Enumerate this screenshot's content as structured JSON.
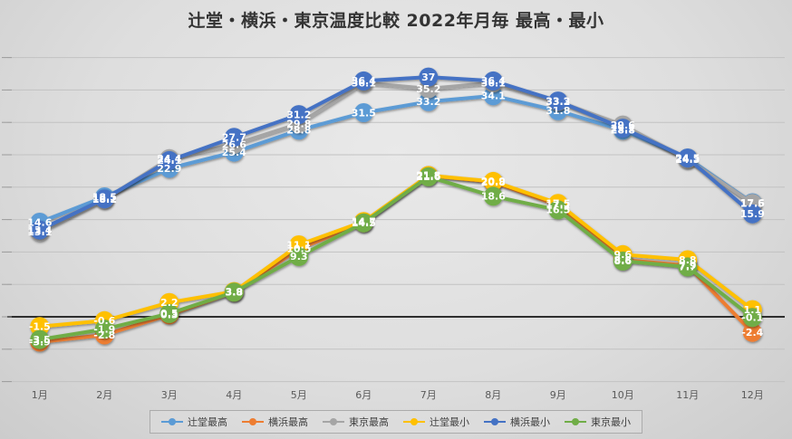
{
  "title": "辻堂・横浜・東京温度比較 2022年月毎 最高・最小",
  "chart_data": {
    "type": "line",
    "title": "辻堂・横浜・東京温度比較 2022年月毎 最高・最小",
    "categories": [
      "1月",
      "2月",
      "3月",
      "4月",
      "5月",
      "6月",
      "7月",
      "8月",
      "9月",
      "10月",
      "11月",
      "12月"
    ],
    "series": [
      {
        "name": "辻堂最高",
        "color": "#5B9BD5",
        "values": [
          14.6,
          18.5,
          22.9,
          25.4,
          28.8,
          31.5,
          33.2,
          34.1,
          31.8,
          28.8,
          24.5,
          17.6
        ]
      },
      {
        "name": "横浜最高",
        "color": "#ED7D31",
        "values": [
          -3.9,
          -2.8,
          0.3,
          3.8,
          10.5,
          14.5,
          21.8,
          20.8,
          17.2,
          8.8,
          7.9,
          -2.4
        ]
      },
      {
        "name": "東京最高",
        "color": "#A5A5A5",
        "values": [
          13.1,
          18.1,
          24.4,
          26.6,
          29.8,
          36.1,
          35.2,
          36.1,
          33.2,
          29.6,
          24.3,
          17.5
        ]
      },
      {
        "name": "辻堂最小",
        "color": "#FFC000",
        "values": [
          -1.5,
          -0.6,
          2.2,
          3.9,
          11.1,
          14.7,
          21.8,
          20.9,
          17.5,
          9.6,
          8.8,
          1.1
        ]
      },
      {
        "name": "横浜最小",
        "color": "#4472C4",
        "values": [
          13.4,
          18.2,
          24.1,
          27.7,
          31.2,
          36.4,
          37,
          36.4,
          33.3,
          29.1,
          24.5,
          15.9
        ]
      },
      {
        "name": "東京最小",
        "color": "#70AD47",
        "values": [
          -3.5,
          -1.9,
          0.5,
          3.8,
          9.3,
          14.5,
          21.6,
          18.6,
          16.5,
          8.6,
          7.7,
          -0.1
        ]
      }
    ],
    "xlabel": "",
    "ylabel": "",
    "ylim": [
      -10,
      40
    ],
    "grid_step": 5,
    "grid": true,
    "y_tick_labels_visible": false,
    "legend_position": "bottom",
    "legend": [
      "辻堂最高",
      "横浜最高",
      "東京最高",
      "辻堂最小",
      "横浜最小",
      "東京最小"
    ]
  },
  "style": {
    "background_light": "#e9e9e9",
    "background_dark": "#cccccc",
    "gridline_color": "#c2c2c2",
    "zero_axis_color": "#2e2e2e",
    "axis_text_color": "#595959",
    "title_color": "#333333",
    "label_text_color": "#ffffff"
  }
}
